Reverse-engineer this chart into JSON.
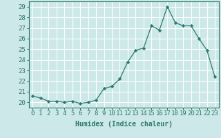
{
  "x": [
    0,
    1,
    2,
    3,
    4,
    5,
    6,
    7,
    8,
    9,
    10,
    11,
    12,
    13,
    14,
    15,
    16,
    17,
    18,
    19,
    20,
    21,
    22,
    23
  ],
  "y": [
    20.6,
    20.4,
    20.1,
    20.1,
    20.0,
    20.1,
    19.9,
    20.0,
    20.2,
    21.3,
    21.5,
    22.2,
    23.8,
    24.9,
    25.1,
    27.2,
    26.8,
    29.0,
    27.5,
    27.2,
    27.2,
    26.0,
    24.9,
    22.4
  ],
  "line_color": "#2d7a6e",
  "marker": "D",
  "marker_size": 2.2,
  "bg_color": "#cce8e8",
  "grid_color": "#ffffff",
  "tick_color": "#2d7a6e",
  "xlabel": "Humidex (Indice chaleur)",
  "xlim": [
    -0.5,
    23.5
  ],
  "ylim": [
    19.5,
    29.5
  ],
  "yticks": [
    20,
    21,
    22,
    23,
    24,
    25,
    26,
    27,
    28,
    29
  ],
  "xticks": [
    0,
    1,
    2,
    3,
    4,
    5,
    6,
    7,
    8,
    9,
    10,
    11,
    12,
    13,
    14,
    15,
    16,
    17,
    18,
    19,
    20,
    21,
    22,
    23
  ],
  "font_size": 6.5,
  "label_font_size": 7
}
